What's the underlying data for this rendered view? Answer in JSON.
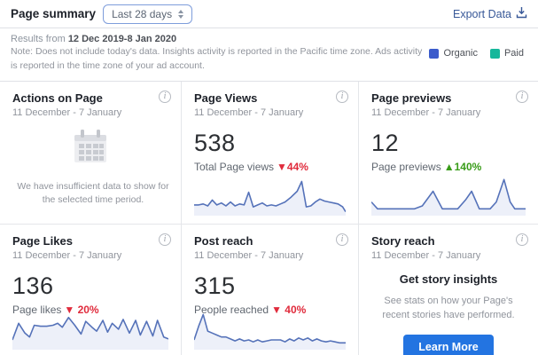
{
  "icons": {
    "info": "i"
  },
  "chart_style": {
    "line": "#5572b9",
    "fill": "#edf0f9"
  },
  "header": {
    "title": "Page summary",
    "date_range": "Last 28 days",
    "export_label": "Export Data"
  },
  "meta": {
    "results_prefix": "Results from",
    "results_dates": "12 Dec 2019-8 Jan 2020",
    "note": "Note: Does not include today's data. Insights activity is reported in the Pacific time zone. Ads activity is reported in the time zone of your ad account.",
    "legend": [
      {
        "label": "Organic",
        "color": "#3b5bcb"
      },
      {
        "label": "Paid",
        "color": "#16b79b"
      }
    ]
  },
  "cards": [
    {
      "title": "Actions on Page",
      "subtitle": "11 December - 7 January",
      "empty_message": "We have insufficient data to show for the selected time period."
    },
    {
      "title": "Page Views",
      "subtitle": "11 December - 7 January",
      "value": "538",
      "metric_label": "Total Page views",
      "change": "▼44%",
      "change_class": "down",
      "chart": {
        "points": [
          [
            0,
            29
          ],
          [
            3,
            29
          ],
          [
            6,
            28
          ],
          [
            9,
            30
          ],
          [
            12,
            24
          ],
          [
            15,
            29
          ],
          [
            18,
            27
          ],
          [
            21,
            30
          ],
          [
            24,
            26
          ],
          [
            27,
            30
          ],
          [
            30,
            28
          ],
          [
            33,
            29
          ],
          [
            36,
            16
          ],
          [
            39,
            31
          ],
          [
            42,
            29
          ],
          [
            45,
            27
          ],
          [
            48,
            30
          ],
          [
            51,
            29
          ],
          [
            54,
            30
          ],
          [
            57,
            28
          ],
          [
            60,
            26
          ],
          [
            64,
            21
          ],
          [
            68,
            15
          ],
          [
            71,
            5
          ],
          [
            74,
            31
          ],
          [
            77,
            30
          ],
          [
            80,
            26
          ],
          [
            83,
            23
          ],
          [
            86,
            25
          ],
          [
            89,
            26
          ],
          [
            92,
            27
          ],
          [
            95,
            28
          ],
          [
            98,
            31
          ],
          [
            100,
            36
          ]
        ]
      }
    },
    {
      "title": "Page previews",
      "subtitle": "11 December - 7 January",
      "value": "12",
      "metric_label": "Page previews",
      "change": "▲140%",
      "change_class": "up",
      "chart": {
        "points": [
          [
            0,
            26
          ],
          [
            4,
            33
          ],
          [
            28,
            33
          ],
          [
            33,
            30
          ],
          [
            40,
            15
          ],
          [
            46,
            33
          ],
          [
            56,
            33
          ],
          [
            61,
            24
          ],
          [
            65,
            15
          ],
          [
            70,
            33
          ],
          [
            77,
            33
          ],
          [
            81,
            26
          ],
          [
            86,
            3
          ],
          [
            90,
            26
          ],
          [
            93,
            33
          ],
          [
            100,
            33
          ]
        ]
      }
    },
    {
      "title": "Page Likes",
      "subtitle": "11 December - 7 January",
      "value": "136",
      "metric_label": "Page likes",
      "change": "▼ 20%",
      "change_class": "down",
      "chart": {
        "points": [
          [
            0,
            30
          ],
          [
            4,
            13
          ],
          [
            8,
            23
          ],
          [
            11,
            27
          ],
          [
            14,
            15
          ],
          [
            18,
            16
          ],
          [
            22,
            16
          ],
          [
            26,
            15
          ],
          [
            29,
            13
          ],
          [
            32,
            17
          ],
          [
            36,
            7
          ],
          [
            40,
            15
          ],
          [
            44,
            24
          ],
          [
            47,
            11
          ],
          [
            51,
            17
          ],
          [
            54,
            21
          ],
          [
            58,
            10
          ],
          [
            61,
            22
          ],
          [
            64,
            13
          ],
          [
            68,
            19
          ],
          [
            71,
            9
          ],
          [
            75,
            23
          ],
          [
            79,
            10
          ],
          [
            82,
            25
          ],
          [
            86,
            11
          ],
          [
            90,
            26
          ],
          [
            93,
            10
          ],
          [
            97,
            27
          ],
          [
            100,
            29
          ]
        ]
      }
    },
    {
      "title": "Post reach",
      "subtitle": "11 December - 7 January",
      "value": "315",
      "metric_label": "People reached",
      "change": "▼ 40%",
      "change_class": "down",
      "chart": {
        "points": [
          [
            0,
            30
          ],
          [
            3,
            16
          ],
          [
            6,
            4
          ],
          [
            9,
            21
          ],
          [
            12,
            23
          ],
          [
            15,
            25
          ],
          [
            18,
            27
          ],
          [
            21,
            27
          ],
          [
            24,
            29
          ],
          [
            27,
            31
          ],
          [
            30,
            29
          ],
          [
            33,
            31
          ],
          [
            36,
            30
          ],
          [
            39,
            32
          ],
          [
            42,
            30
          ],
          [
            45,
            32
          ],
          [
            48,
            31
          ],
          [
            51,
            30
          ],
          [
            54,
            30
          ],
          [
            57,
            30
          ],
          [
            60,
            32
          ],
          [
            63,
            29
          ],
          [
            66,
            31
          ],
          [
            69,
            28
          ],
          [
            72,
            30
          ],
          [
            75,
            28
          ],
          [
            78,
            31
          ],
          [
            81,
            29
          ],
          [
            84,
            31
          ],
          [
            87,
            32
          ],
          [
            90,
            31
          ],
          [
            93,
            32
          ],
          [
            96,
            33
          ],
          [
            100,
            33
          ]
        ]
      }
    },
    {
      "title": "Story reach",
      "subtitle": "11 December - 7 January",
      "promo_title": "Get story insights",
      "promo_text": "See stats on how your Page's recent stories have performed.",
      "button_label": "Learn More"
    }
  ]
}
